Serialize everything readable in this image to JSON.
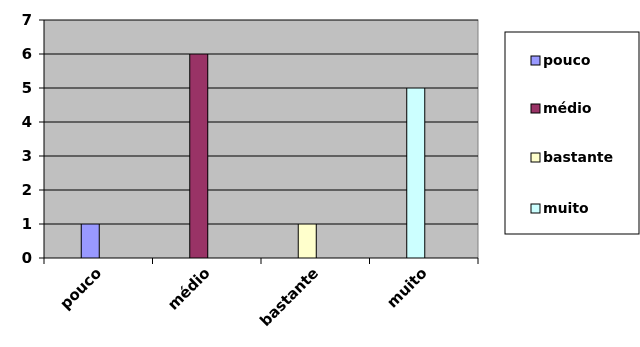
{
  "chart_data": {
    "type": "bar",
    "title": "",
    "xlabel": "",
    "ylabel": "",
    "categories": [
      "pouco",
      "médio",
      "bastante",
      "muito"
    ],
    "values": [
      1,
      6,
      1,
      5
    ],
    "ylim": [
      0,
      7
    ],
    "yticks": [
      0,
      1,
      2,
      3,
      4,
      5,
      6,
      7
    ],
    "grid": true,
    "legend_position": "right",
    "plot_background": "#c0c0c0",
    "bar_colors": [
      "#9999ff",
      "#993366",
      "#ffffcc",
      "#ccffff"
    ],
    "legend": [
      "pouco",
      "médio",
      "bastante",
      "muito"
    ]
  }
}
